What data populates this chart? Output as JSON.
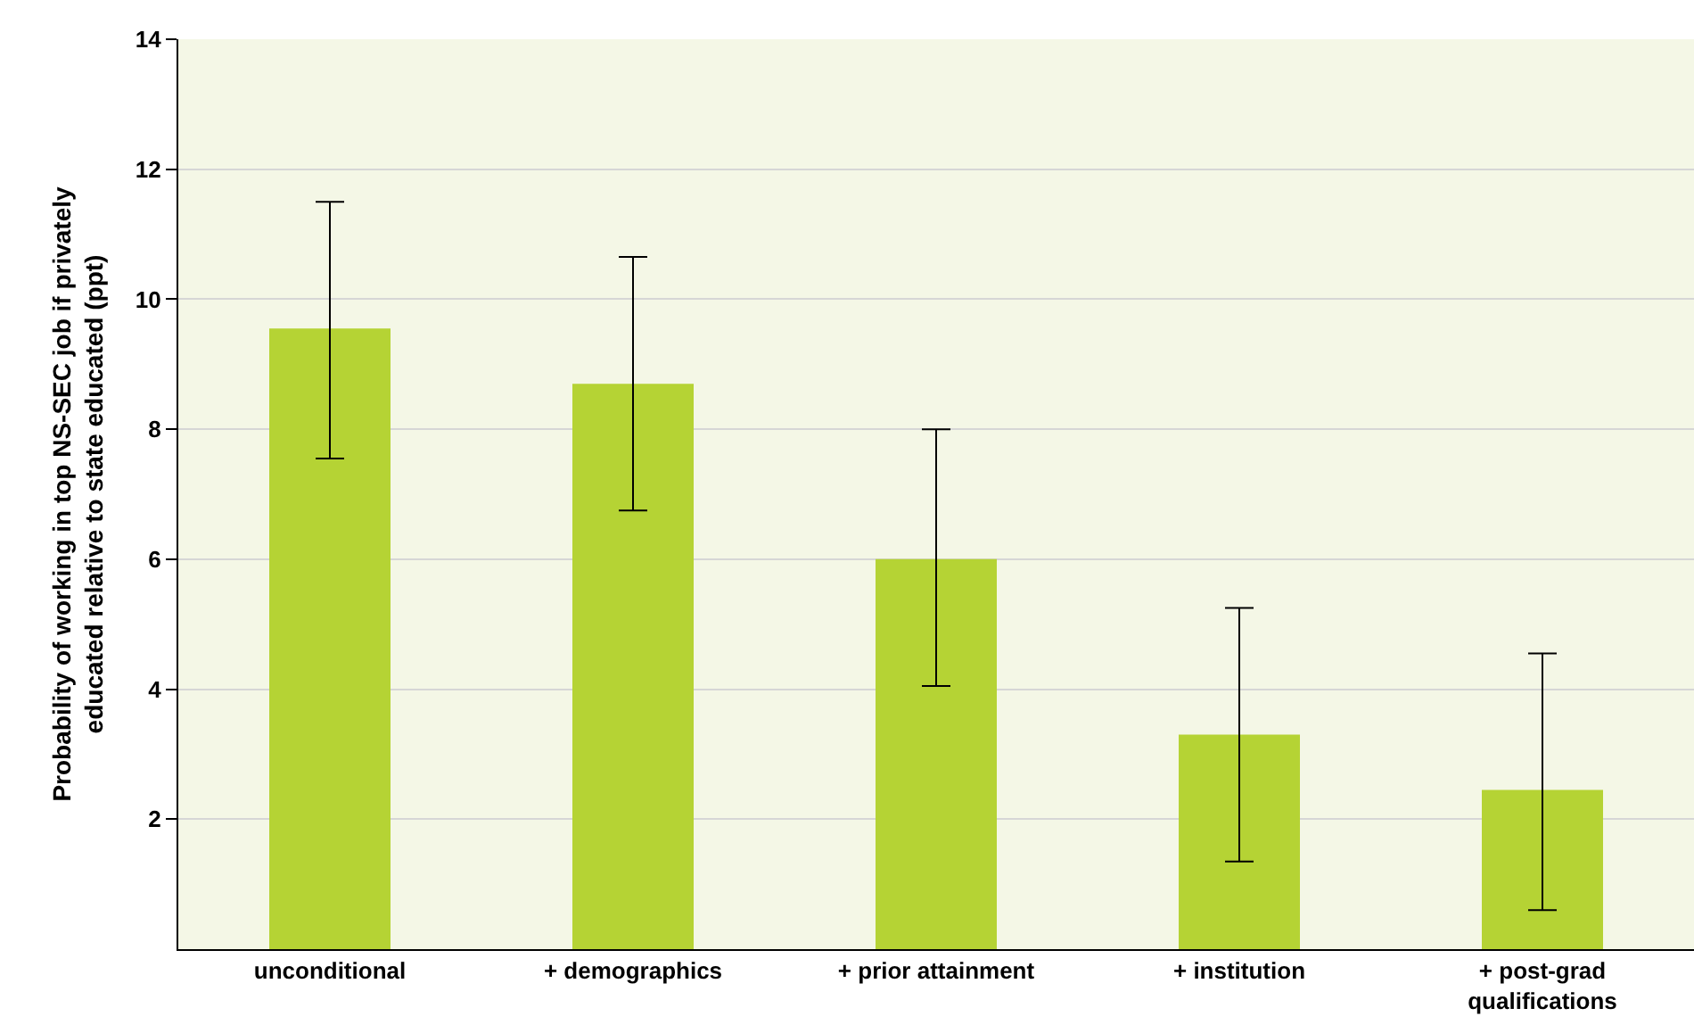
{
  "chart_data": {
    "type": "bar",
    "ylabel": "Probability of working in top NS-SEC job if privately educated relative to state educated (ppt)",
    "categories": [
      "unconditional",
      "+ demographics",
      "+ prior attainment",
      "+ institution",
      "+ post-grad qualifications"
    ],
    "values": [
      9.55,
      8.7,
      6.0,
      3.3,
      2.45
    ],
    "errors": [
      [
        7.55,
        11.5
      ],
      [
        6.75,
        10.65
      ],
      [
        4.05,
        8.0
      ],
      [
        1.35,
        5.25
      ],
      [
        0.6,
        4.55
      ]
    ],
    "color": "#b5d334",
    "ylim": [
      0,
      14
    ],
    "yticks": [
      2,
      4,
      6,
      8,
      10,
      12,
      14
    ],
    "grid": "y"
  }
}
